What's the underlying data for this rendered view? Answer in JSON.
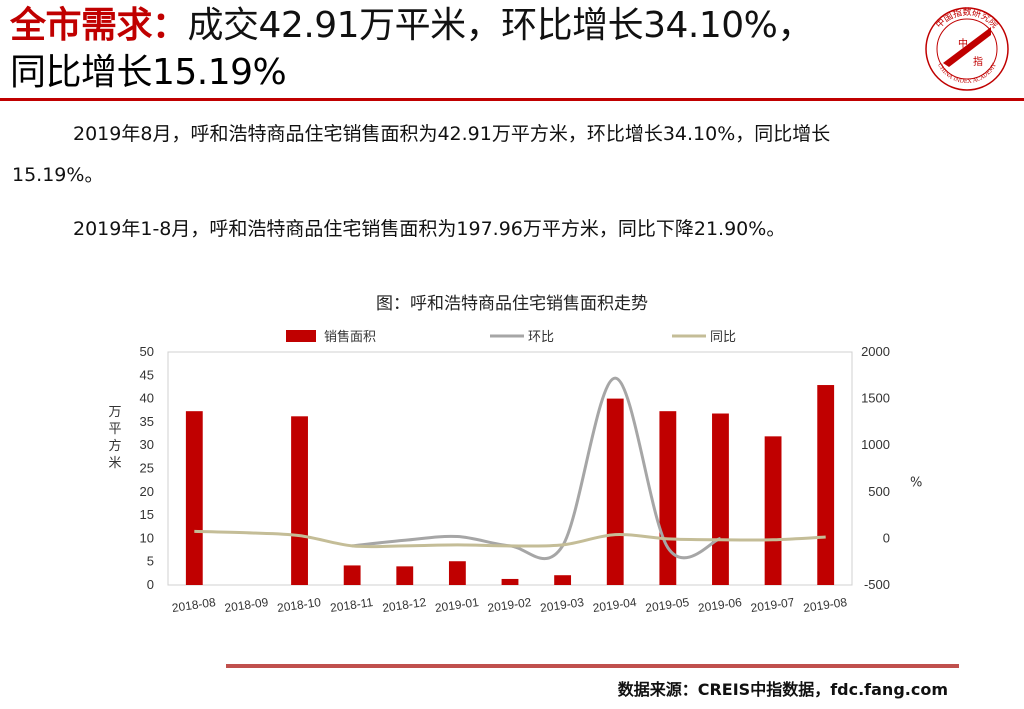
{
  "header": {
    "title_key": "全市需求：",
    "title_rest": "成交42.91万平米，环比增长34.10%，",
    "title_line2": "同比增长15.19%",
    "accent_color": "#c00000"
  },
  "logo": {
    "text_top": "中国指数研究院",
    "text_bottom": "CHINA INDEX ACADEMY",
    "center_char_1": "中",
    "center_char_2": "指"
  },
  "body": {
    "paragraph1_line1": "2019年8月，呼和浩特商品住宅销售面积为42.91万平方米，环比增长34.10%，同比增长",
    "paragraph1_line2": "15.19%。",
    "paragraph2": "2019年1-8月，呼和浩特商品住宅销售面积为197.96万平方米，同比下降21.90%。"
  },
  "chart_title": "图：呼和浩特商品住宅销售面积走势",
  "chart_data": {
    "type": "bar",
    "categories": [
      "2018-08",
      "2018-09",
      "2018-10",
      "2018-11",
      "2018-12",
      "2019-01",
      "2019-02",
      "2019-03",
      "2019-04",
      "2019-05",
      "2019-06",
      "2019-07",
      "2019-08"
    ],
    "series": [
      {
        "name": "销售面积",
        "type": "bar",
        "axis": "left",
        "color": "#c00000",
        "values": [
          37.3,
          null,
          36.2,
          4.2,
          4.0,
          5.1,
          1.3,
          2.1,
          40.0,
          37.3,
          36.8,
          31.9,
          42.91
        ]
      },
      {
        "name": "环比",
        "type": "line",
        "axis": "right",
        "color": "#a6a6a6",
        "values": [
          null,
          null,
          null,
          -80,
          -20,
          20,
          -80,
          -80,
          1720,
          -100,
          0,
          null,
          null
        ]
      },
      {
        "name": "同比",
        "type": "line",
        "axis": "right",
        "color": "#c4bd97",
        "values": [
          75,
          60,
          30,
          -80,
          -80,
          -70,
          -80,
          -70,
          40,
          -5,
          -15,
          -15,
          15.19
        ]
      }
    ],
    "ylabel": "万平方米",
    "y2label": "%",
    "ylim": [
      0,
      50
    ],
    "y2lim": [
      -500,
      2000
    ],
    "yticks": [
      0,
      5,
      10,
      15,
      20,
      25,
      30,
      35,
      40,
      45,
      50
    ],
    "y2ticks": [
      -500,
      0,
      500,
      1000,
      1500,
      2000
    ],
    "legend_position": "top",
    "grid": false
  },
  "footer": {
    "source": "数据来源：CREIS中指数据，fdc.fang.com"
  }
}
